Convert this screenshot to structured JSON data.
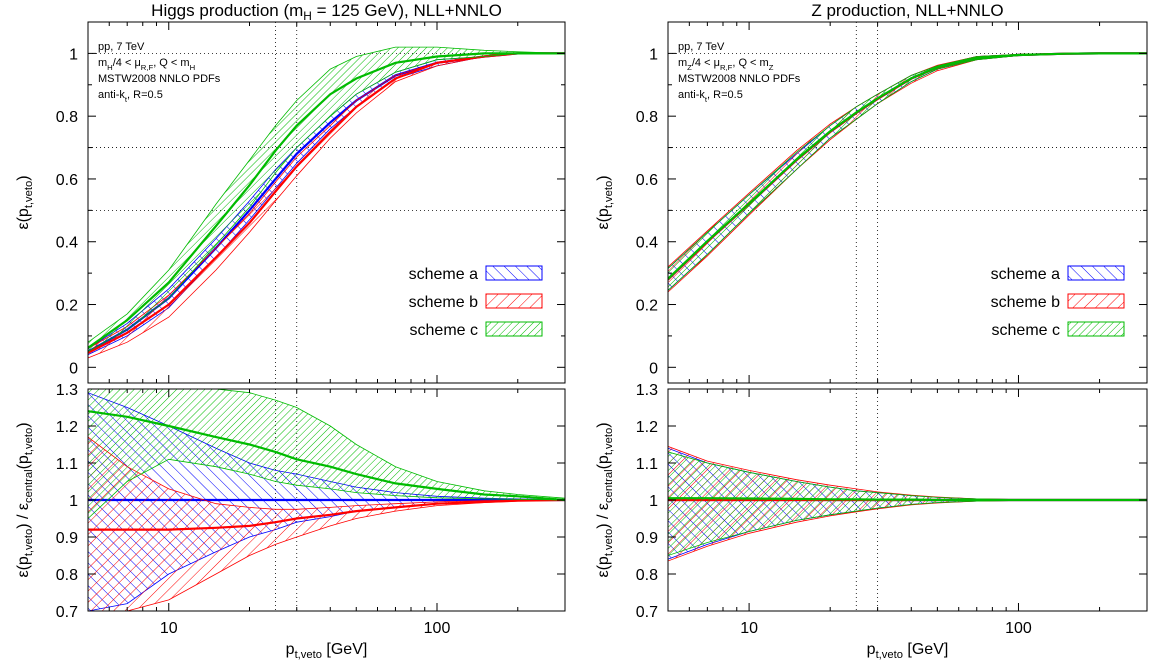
{
  "chart_data": [
    {
      "type": "line",
      "panel": "Higgs efficiency",
      "title": "Higgs production (m_H = 125 GeV), NLL+NNLO",
      "xlabel": "p_t,veto [GeV]",
      "ylabel": "ε(p_t,veto)",
      "xscale": "log",
      "xlim": [
        5,
        300
      ],
      "ylim": [
        -0.05,
        1.1
      ],
      "xticks": [
        10,
        100
      ],
      "xticklabels": [
        "10",
        "100"
      ],
      "yticks": [
        0,
        0.2,
        0.4,
        0.6,
        0.8,
        1
      ],
      "yticklabels": [
        "0",
        "0.2",
        "0.4",
        "0.6",
        "0.8",
        "1"
      ],
      "grid_x": [
        25,
        30
      ],
      "grid_y": [
        0.5,
        0.7,
        1
      ],
      "annotations": [
        "pp, 7 TeV",
        "m_H/4 < μ_R,F, Q < m_H",
        "MSTW2008 NNLO PDFs",
        "anti-k_t, R=0.5"
      ],
      "legend_position": "bottom-right",
      "x": [
        5,
        7,
        10,
        15,
        20,
        25,
        30,
        40,
        50,
        70,
        100,
        150,
        200,
        300
      ],
      "series": [
        {
          "name": "scheme a",
          "color": "#0000ff",
          "pattern": "ltr",
          "central": [
            0.05,
            0.12,
            0.22,
            0.38,
            0.5,
            0.6,
            0.68,
            0.78,
            0.85,
            0.93,
            0.97,
            0.99,
            1.0,
            1.0
          ],
          "low": [
            0.04,
            0.1,
            0.19,
            0.35,
            0.47,
            0.57,
            0.65,
            0.76,
            0.83,
            0.92,
            0.96,
            0.99,
            1.0,
            1.0
          ],
          "high": [
            0.06,
            0.14,
            0.25,
            0.41,
            0.53,
            0.63,
            0.7,
            0.8,
            0.87,
            0.94,
            0.98,
            0.99,
            1.0,
            1.0
          ]
        },
        {
          "name": "scheme b",
          "color": "#ff0000",
          "pattern": "rtl",
          "central": [
            0.046,
            0.11,
            0.2,
            0.35,
            0.46,
            0.56,
            0.64,
            0.75,
            0.83,
            0.92,
            0.97,
            0.99,
            1.0,
            1.0
          ],
          "low": [
            0.03,
            0.08,
            0.16,
            0.31,
            0.43,
            0.53,
            0.61,
            0.73,
            0.81,
            0.91,
            0.96,
            0.99,
            1.0,
            1.0
          ],
          "high": [
            0.06,
            0.13,
            0.23,
            0.38,
            0.49,
            0.59,
            0.67,
            0.77,
            0.85,
            0.93,
            0.97,
            0.99,
            1.0,
            1.0
          ]
        },
        {
          "name": "scheme c",
          "color": "#00bb00",
          "pattern": "dense",
          "central": [
            0.062,
            0.15,
            0.27,
            0.45,
            0.58,
            0.69,
            0.77,
            0.87,
            0.92,
            0.97,
            0.99,
            1.0,
            1.0,
            1.0
          ],
          "low": [
            0.05,
            0.12,
            0.22,
            0.39,
            0.51,
            0.62,
            0.7,
            0.8,
            0.87,
            0.94,
            0.98,
            0.99,
            1.0,
            1.0
          ],
          "high": [
            0.08,
            0.17,
            0.31,
            0.52,
            0.66,
            0.77,
            0.85,
            0.95,
            0.99,
            1.02,
            1.02,
            1.01,
            1.005,
            1.0
          ]
        }
      ]
    },
    {
      "type": "line",
      "panel": "Higgs ratio",
      "xlabel": "p_t,veto [GeV]",
      "ylabel": "ε(p_t,veto) / ε_central(p_t,veto)",
      "xscale": "log",
      "xlim": [
        5,
        300
      ],
      "ylim": [
        0.7,
        1.3
      ],
      "xticks": [
        10,
        100
      ],
      "xticklabels": [
        "10",
        "100"
      ],
      "yticks": [
        0.7,
        0.8,
        0.9,
        1,
        1.1,
        1.2,
        1.3
      ],
      "yticklabels": [
        "0.7",
        "0.8",
        "0.9",
        "1",
        "1.1",
        "1.2",
        "1.3"
      ],
      "grid_x": [
        25,
        30
      ],
      "x": [
        5,
        7,
        10,
        15,
        20,
        25,
        30,
        40,
        50,
        70,
        100,
        150,
        200,
        300
      ],
      "series": [
        {
          "name": "scheme a",
          "color": "#0000ff",
          "pattern": "ltr",
          "central": [
            1,
            1,
            1,
            1,
            1,
            1,
            1,
            1,
            1,
            1,
            1,
            1,
            1,
            1
          ],
          "low": [
            0.7,
            0.72,
            0.8,
            0.86,
            0.9,
            0.92,
            0.94,
            0.955,
            0.97,
            0.98,
            0.99,
            0.995,
            0.998,
            1.0
          ],
          "high": [
            1.29,
            1.25,
            1.2,
            1.14,
            1.1,
            1.08,
            1.07,
            1.05,
            1.035,
            1.02,
            1.01,
            1.005,
            1.003,
            1.0
          ]
        },
        {
          "name": "scheme b",
          "color": "#ff0000",
          "pattern": "rtl",
          "central": [
            0.92,
            0.92,
            0.92,
            0.925,
            0.93,
            0.94,
            0.95,
            0.96,
            0.97,
            0.98,
            0.99,
            0.995,
            0.998,
            1.0
          ],
          "low": [
            0.7,
            0.7,
            0.73,
            0.8,
            0.85,
            0.88,
            0.9,
            0.93,
            0.95,
            0.97,
            0.985,
            0.993,
            0.997,
            1.0
          ],
          "high": [
            1.17,
            1.09,
            1.03,
            0.99,
            0.98,
            0.975,
            0.975,
            0.98,
            0.985,
            0.99,
            0.995,
            0.998,
            0.999,
            1.0
          ]
        },
        {
          "name": "scheme c",
          "color": "#00bb00",
          "pattern": "dense",
          "central": [
            1.24,
            1.225,
            1.2,
            1.17,
            1.15,
            1.13,
            1.11,
            1.09,
            1.07,
            1.045,
            1.03,
            1.015,
            1.01,
            1.0
          ],
          "low": [
            0.95,
            1.05,
            1.11,
            1.09,
            1.07,
            1.05,
            1.04,
            1.03,
            1.02,
            1.012,
            1.006,
            1.003,
            1.002,
            1.0
          ],
          "high": [
            1.3,
            1.3,
            1.3,
            1.3,
            1.29,
            1.27,
            1.25,
            1.2,
            1.15,
            1.09,
            1.05,
            1.025,
            1.015,
            1.005
          ]
        }
      ]
    },
    {
      "type": "line",
      "panel": "Z efficiency",
      "title": "Z production, NLL+NNLO",
      "xlabel": "p_t,veto [GeV]",
      "ylabel": "ε(p_t,veto)",
      "xscale": "log",
      "xlim": [
        5,
        300
      ],
      "ylim": [
        -0.05,
        1.1
      ],
      "xticks": [
        10,
        100
      ],
      "xticklabels": [
        "10",
        "100"
      ],
      "yticks": [
        0,
        0.2,
        0.4,
        0.6,
        0.8,
        1
      ],
      "yticklabels": [
        "0",
        "0.2",
        "0.4",
        "0.6",
        "0.8",
        "1"
      ],
      "grid_x": [
        25,
        30
      ],
      "grid_y": [
        0.5,
        0.7,
        1
      ],
      "annotations": [
        "pp, 7 TeV",
        "m_Z/4 < μ_R,F, Q < m_Z",
        "MSTW2008 NNLO PDFs",
        "anti-k_t, R=0.5"
      ],
      "legend_position": "bottom-right",
      "x": [
        5,
        7,
        10,
        15,
        20,
        25,
        30,
        40,
        50,
        70,
        100,
        150,
        200,
        300
      ],
      "series": [
        {
          "name": "scheme a",
          "color": "#0000ff",
          "pattern": "ltr",
          "central": [
            0.28,
            0.4,
            0.52,
            0.66,
            0.75,
            0.81,
            0.855,
            0.92,
            0.955,
            0.985,
            0.995,
            0.999,
            1.0,
            1.0
          ],
          "low": [
            0.245,
            0.36,
            0.49,
            0.63,
            0.73,
            0.79,
            0.84,
            0.91,
            0.95,
            0.98,
            0.993,
            0.998,
            1.0,
            1.0
          ],
          "high": [
            0.315,
            0.43,
            0.55,
            0.68,
            0.77,
            0.83,
            0.87,
            0.93,
            0.96,
            0.99,
            0.997,
            1.0,
            1.0,
            1.0
          ]
        },
        {
          "name": "scheme b",
          "color": "#ff0000",
          "pattern": "rtl",
          "central": [
            0.28,
            0.4,
            0.52,
            0.66,
            0.75,
            0.81,
            0.855,
            0.92,
            0.955,
            0.985,
            0.995,
            0.999,
            1.0,
            1.0
          ],
          "low": [
            0.24,
            0.355,
            0.485,
            0.63,
            0.725,
            0.79,
            0.84,
            0.905,
            0.945,
            0.98,
            0.993,
            0.998,
            1.0,
            1.0
          ],
          "high": [
            0.32,
            0.435,
            0.555,
            0.69,
            0.775,
            0.83,
            0.87,
            0.93,
            0.962,
            0.99,
            0.997,
            1.0,
            1.0,
            1.0
          ]
        },
        {
          "name": "scheme c",
          "color": "#00bb00",
          "pattern": "dense",
          "central": [
            0.282,
            0.402,
            0.522,
            0.662,
            0.752,
            0.812,
            0.857,
            0.921,
            0.956,
            0.985,
            0.995,
            0.999,
            1.0,
            1.0
          ],
          "low": [
            0.245,
            0.36,
            0.49,
            0.63,
            0.73,
            0.79,
            0.84,
            0.91,
            0.95,
            0.98,
            0.993,
            0.998,
            1.0,
            1.0
          ],
          "high": [
            0.315,
            0.43,
            0.55,
            0.685,
            0.77,
            0.83,
            0.87,
            0.93,
            0.96,
            0.99,
            0.997,
            1.0,
            1.0,
            1.0
          ]
        }
      ]
    },
    {
      "type": "line",
      "panel": "Z ratio",
      "xlabel": "p_t,veto [GeV]",
      "ylabel": "ε(p_t,veto) / ε_central(p_t,veto)",
      "xscale": "log",
      "xlim": [
        5,
        300
      ],
      "ylim": [
        0.7,
        1.3
      ],
      "xticks": [
        10,
        100
      ],
      "xticklabels": [
        "10",
        "100"
      ],
      "yticks": [
        0.7,
        0.8,
        0.9,
        1,
        1.1,
        1.2,
        1.3
      ],
      "yticklabels": [
        "0.7",
        "0.8",
        "0.9",
        "1",
        "1.1",
        "1.2",
        "1.3"
      ],
      "grid_x": [
        25,
        30
      ],
      "x": [
        5,
        7,
        10,
        15,
        20,
        25,
        30,
        40,
        50,
        70,
        100,
        150,
        200,
        300
      ],
      "series": [
        {
          "name": "scheme a",
          "color": "#0000ff",
          "pattern": "ltr",
          "central": [
            1,
            1,
            1,
            1,
            1,
            1,
            1,
            1,
            1,
            1,
            1,
            1,
            1,
            1
          ],
          "low": [
            0.84,
            0.88,
            0.915,
            0.945,
            0.96,
            0.97,
            0.978,
            0.988,
            0.993,
            0.997,
            0.999,
            1.0,
            1.0,
            1.0
          ],
          "high": [
            1.14,
            1.1,
            1.075,
            1.05,
            1.035,
            1.025,
            1.02,
            1.012,
            1.007,
            1.003,
            1.001,
            1.0,
            1.0,
            1.0
          ]
        },
        {
          "name": "scheme b",
          "color": "#ff0000",
          "pattern": "rtl",
          "central": [
            1,
            1,
            1,
            1,
            1,
            1,
            1,
            1,
            1,
            1,
            1,
            1,
            1,
            1
          ],
          "low": [
            0.835,
            0.875,
            0.91,
            0.94,
            0.957,
            0.968,
            0.976,
            0.987,
            0.992,
            0.997,
            0.999,
            1.0,
            1.0,
            1.0
          ],
          "high": [
            1.145,
            1.105,
            1.08,
            1.055,
            1.04,
            1.03,
            1.022,
            1.013,
            1.008,
            1.003,
            1.001,
            1.0,
            1.0,
            1.0
          ]
        },
        {
          "name": "scheme c",
          "color": "#00bb00",
          "pattern": "dense",
          "central": [
            1.005,
            1.005,
            1.004,
            1.003,
            1.002,
            1.002,
            1.001,
            1.001,
            1.0,
            1.0,
            1.0,
            1.0,
            1.0,
            1.0
          ],
          "low": [
            0.85,
            0.885,
            0.915,
            0.945,
            0.96,
            0.97,
            0.978,
            0.988,
            0.993,
            0.997,
            0.999,
            1.0,
            1.0,
            1.0
          ],
          "high": [
            1.13,
            1.1,
            1.075,
            1.05,
            1.035,
            1.025,
            1.02,
            1.012,
            1.007,
            1.003,
            1.001,
            1.0,
            1.0,
            1.0
          ]
        }
      ]
    }
  ]
}
